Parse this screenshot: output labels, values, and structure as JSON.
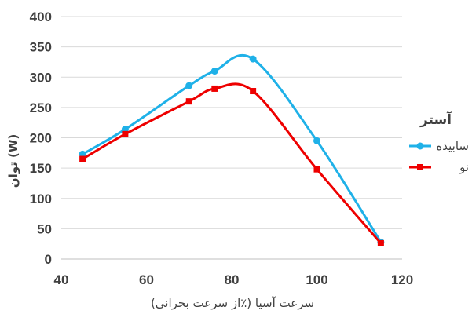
{
  "chart_data": {
    "type": "line",
    "xlabel": "سرعت آسیا (٪از سرعت بحرانی)",
    "ylabel": "توان (W)",
    "xlim": [
      40,
      120
    ],
    "ylim": [
      0,
      400
    ],
    "xticks": [
      "40",
      "60",
      "80",
      "100",
      "120"
    ],
    "yticks": [
      "0",
      "50",
      "100",
      "150",
      "200",
      "250",
      "300",
      "350",
      "400"
    ],
    "grid": "horizontal",
    "legend": {
      "title": "آستر",
      "placement": "right"
    },
    "series": [
      {
        "name": "سابیده",
        "color": "#1FB1E8",
        "marker": "circle",
        "x": [
          45,
          55,
          70,
          76,
          85,
          100,
          115
        ],
        "y": [
          173,
          214,
          286,
          310,
          330,
          195,
          28
        ]
      },
      {
        "name": "نو",
        "color": "#EE0000",
        "marker": "square",
        "x": [
          45,
          55,
          70,
          76,
          85,
          100,
          115
        ],
        "y": [
          165,
          206,
          260,
          281,
          277,
          148,
          26
        ]
      }
    ]
  }
}
